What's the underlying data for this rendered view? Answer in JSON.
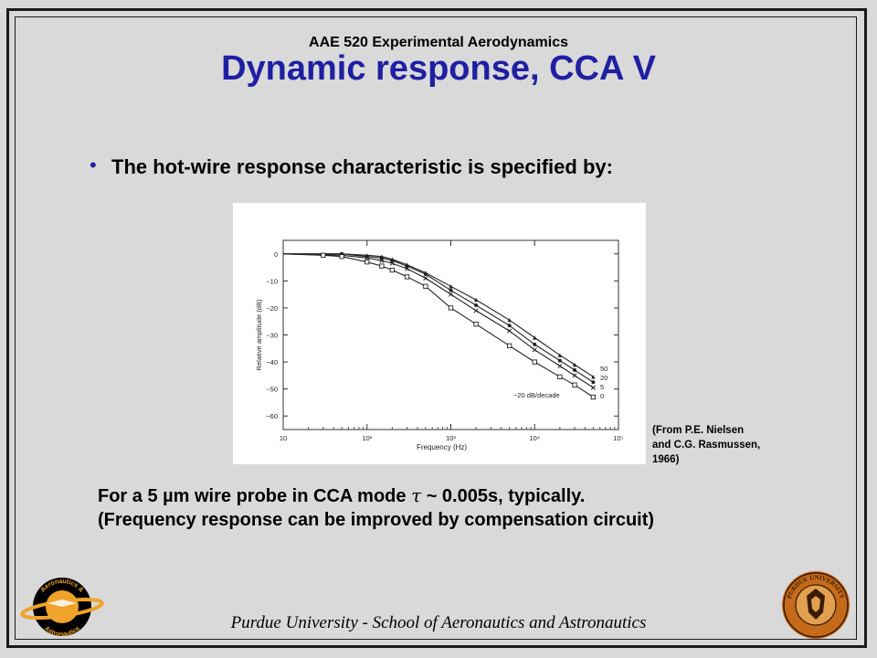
{
  "header": {
    "course": "AAE 520 Experimental Aerodynamics",
    "title": "Dynamic response, CCA V"
  },
  "bullet": {
    "text": "The hot-wire response characteristic is specified by:"
  },
  "citation": {
    "lines": [
      "(From P.E. Nielsen",
      "and C.G. Rasmussen,",
      "1966)"
    ]
  },
  "note": {
    "line1_prefix": "For a 5 µm wire probe in CCA mode ",
    "line1_symbol": "τ",
    "line1_suffix": " ~ 0.005s, typically.",
    "line2": "(Frequency response can be improved by compensation circuit)"
  },
  "footer": {
    "text": "Purdue University - School of Aeronautics and Astronautics"
  },
  "logos": {
    "left": {
      "top": "Aeronautics &",
      "bottom": "Astronautics"
    },
    "right": {
      "text": "PURDUE UNIVERSITY"
    }
  },
  "colors": {
    "background": "#d9d9d9",
    "title": "#1f1fa3",
    "text": "#000000"
  },
  "chart_data": {
    "type": "line",
    "xlabel": "Frequency (Hz)",
    "ylabel": "Relative amplitude (dB)",
    "x_scale": "log",
    "xlim": [
      10,
      100000
    ],
    "ylim": [
      -65,
      5
    ],
    "x_ticks": [
      {
        "value": 10,
        "label": "10"
      },
      {
        "value": 100,
        "label": "10²"
      },
      {
        "value": 1000,
        "label": "10³"
      },
      {
        "value": 10000,
        "label": "10⁴"
      },
      {
        "value": 100000,
        "label": "10⁵"
      }
    ],
    "y_ticks": [
      {
        "value": 0,
        "label": "0"
      },
      {
        "value": -10,
        "label": "−10"
      },
      {
        "value": -20,
        "label": "−20"
      },
      {
        "value": -30,
        "label": "−30"
      },
      {
        "value": -40,
        "label": "−40"
      },
      {
        "value": -50,
        "label": "−50"
      },
      {
        "value": -60,
        "label": "−60"
      }
    ],
    "annotation": "−20 dB/decade",
    "series": [
      {
        "name": "50",
        "marker": "triangle",
        "x": [
          10,
          50,
          100,
          150,
          200,
          300,
          500,
          1000,
          2000,
          5000,
          10000,
          20000,
          30000,
          50000
        ],
        "y": [
          0,
          0,
          -0.5,
          -1,
          -2,
          -4,
          -7,
          -12,
          -17,
          -24.5,
          -31,
          -37.5,
          -41,
          -45.5
        ]
      },
      {
        "name": "20",
        "marker": "circle",
        "x": [
          10,
          50,
          100,
          150,
          200,
          300,
          500,
          1000,
          2000,
          5000,
          10000,
          20000,
          30000,
          50000
        ],
        "y": [
          0,
          0,
          -1,
          -1.5,
          -2.5,
          -4.5,
          -7.5,
          -13.5,
          -19,
          -26.5,
          -33.5,
          -39.5,
          -43,
          -47.5
        ]
      },
      {
        "name": "5",
        "marker": "cross",
        "x": [
          10,
          50,
          100,
          150,
          200,
          300,
          500,
          1000,
          2000,
          5000,
          10000,
          20000,
          30000,
          50000
        ],
        "y": [
          0,
          -0.5,
          -1.5,
          -2.5,
          -3.5,
          -5.5,
          -9,
          -15,
          -21,
          -28.5,
          -35.5,
          -41.5,
          -45,
          -49.5
        ]
      },
      {
        "name": "0",
        "marker": "square",
        "x": [
          10,
          30,
          50,
          100,
          150,
          200,
          300,
          500,
          1000,
          2000,
          5000,
          10000,
          20000,
          30000,
          50000
        ],
        "y": [
          0,
          -0.5,
          -1,
          -3,
          -4.5,
          -6,
          -8.5,
          -12,
          -20,
          -26,
          -34,
          -40,
          -45.5,
          -48.5,
          -53
        ]
      }
    ]
  }
}
